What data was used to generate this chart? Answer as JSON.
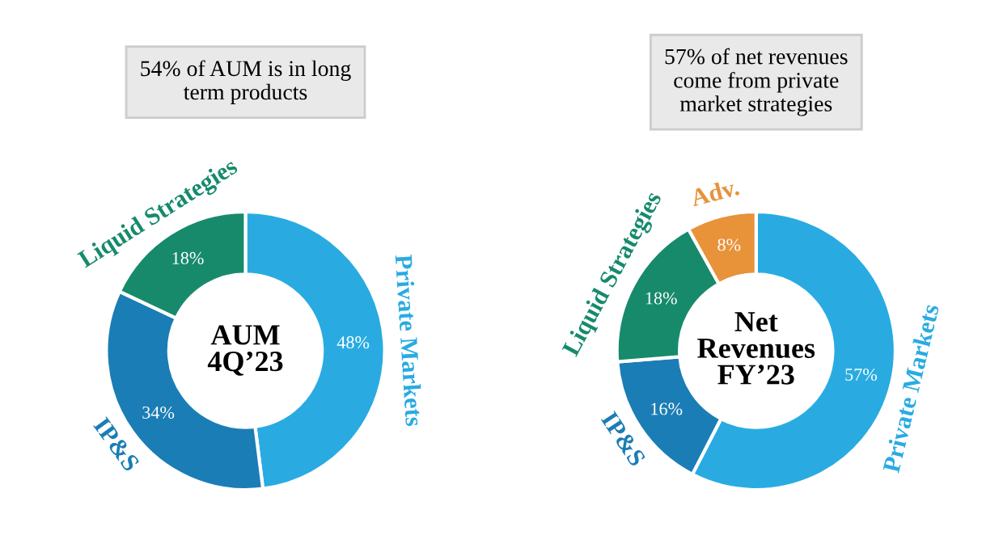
{
  "chart_data": [
    {
      "type": "donut",
      "title": "54% of AUM is in long\nterm products",
      "categories": [
        "Private Markets",
        "IP&S",
        "Liquid Strategies"
      ],
      "values": [
        48,
        34,
        18
      ],
      "value_labels": [
        "48%",
        "34%",
        "18%"
      ],
      "colors": [
        "#29abe2",
        "#1b7db5",
        "#178a6c"
      ],
      "annotations": [
        "AUM\n4Q’23"
      ]
    },
    {
      "type": "donut",
      "title": "57% of net revenues\ncome from private\nmarket strategies",
      "categories": [
        "Private Markets",
        "IP&S",
        "Liquid Strategies",
        "Adv."
      ],
      "values": [
        57,
        16,
        18,
        8
      ],
      "value_labels": [
        "57%",
        "16%",
        "18%",
        "8%"
      ],
      "colors": [
        "#29abe2",
        "#1b7db5",
        "#178a6c",
        "#e8923a"
      ],
      "annotations": [
        "Net\nRevenues\nFY’23"
      ]
    }
  ]
}
